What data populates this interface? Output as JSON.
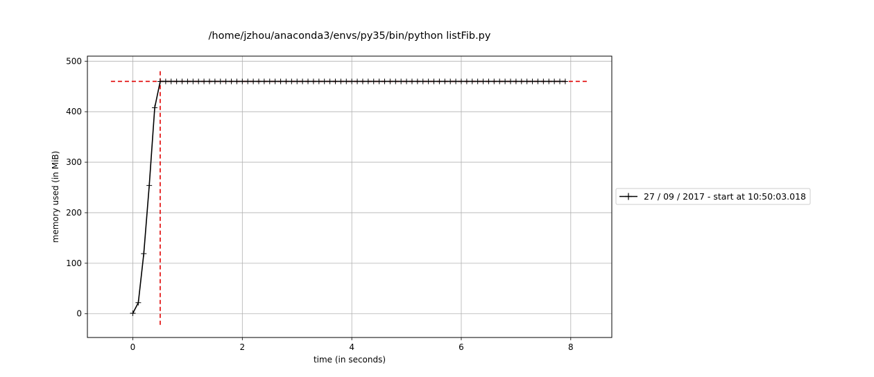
{
  "chart_data": {
    "type": "line",
    "title": "/home/jzhou/anaconda3/envs/py35/bin/python listFib.py",
    "xlabel": "time (in seconds)",
    "ylabel": "memory used (in MiB)",
    "xlim": [
      -0.83,
      8.75
    ],
    "ylim": [
      -47,
      510
    ],
    "xticks": [
      0,
      2,
      4,
      6,
      8
    ],
    "yticks": [
      0,
      100,
      200,
      300,
      400,
      500
    ],
    "xtick_labels": [
      "0",
      "2",
      "4",
      "6",
      "8"
    ],
    "ytick_labels": [
      "0",
      "100",
      "200",
      "300",
      "400",
      "500"
    ],
    "grid": true,
    "legend_position": "right",
    "series": [
      {
        "name": "27 / 09 / 2017 - start at 10:50:03.018",
        "color": "#000000",
        "marker": "plus",
        "x_start": 0,
        "x_step": 0.1,
        "values": [
          1,
          22,
          119,
          254,
          408,
          460,
          460,
          460,
          460,
          460,
          460,
          460,
          460,
          460,
          460,
          460,
          460,
          460,
          460,
          460,
          460,
          460,
          460,
          460,
          460,
          460,
          460,
          460,
          460,
          460,
          460,
          460,
          460,
          460,
          460,
          460,
          460,
          460,
          460,
          460,
          460,
          460,
          460,
          460,
          460,
          460,
          460,
          460,
          460,
          460,
          460,
          460,
          460,
          460,
          460,
          460,
          460,
          460,
          460,
          460,
          460,
          460,
          460,
          460,
          460,
          460,
          460,
          460,
          460,
          460,
          460,
          460,
          460,
          460,
          460,
          460,
          460,
          460,
          460,
          460
        ]
      }
    ],
    "reference_lines": [
      {
        "orientation": "horizontal",
        "value": 460,
        "from": -0.4,
        "to": 8.3,
        "color": "#e00000",
        "style": "dashed"
      },
      {
        "orientation": "vertical",
        "value": 0.5,
        "from": -22,
        "to": 484,
        "color": "#e00000",
        "style": "dashed"
      }
    ]
  }
}
